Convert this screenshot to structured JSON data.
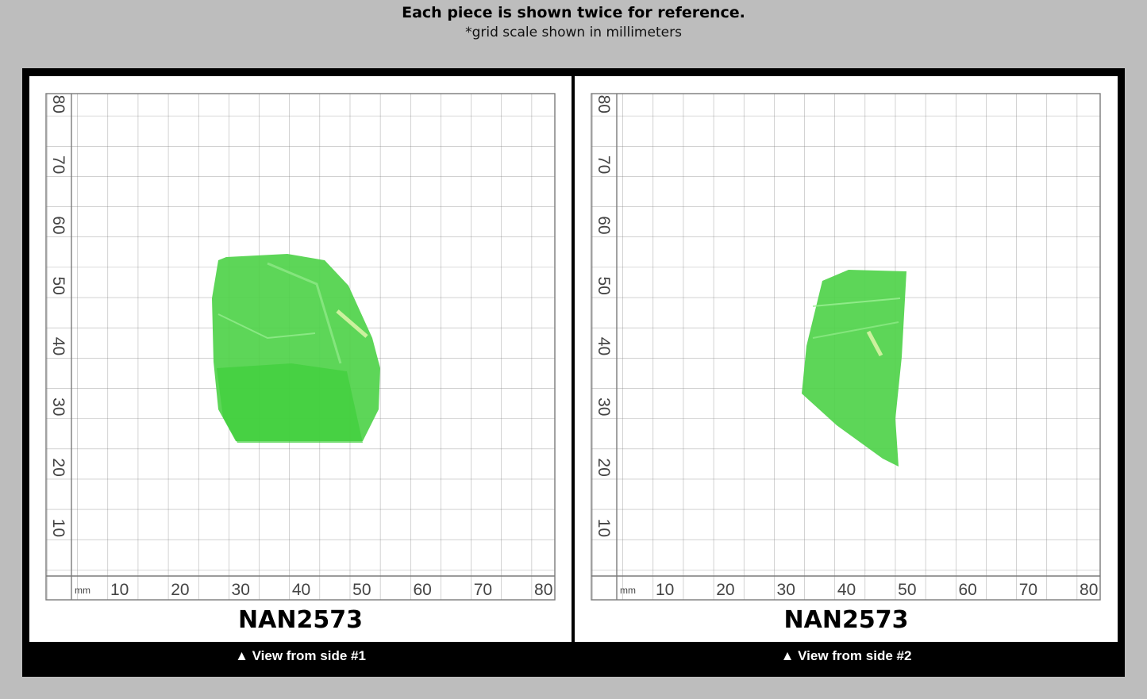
{
  "header": {
    "title": "Each piece is shown twice for reference.",
    "subtitle": "*grid scale shown in millimeters"
  },
  "grid": {
    "unit_label": "mm",
    "x_ticks": [
      "10",
      "20",
      "30",
      "40",
      "50",
      "60",
      "70",
      "80"
    ],
    "y_ticks": [
      "80",
      "70",
      "60",
      "50",
      "40",
      "30",
      "20",
      "10"
    ]
  },
  "views": [
    {
      "code": "NAN2573",
      "caption": "▲ View from side #1"
    },
    {
      "code": "NAN2573",
      "caption": "▲ View from side #2"
    }
  ],
  "colors": {
    "specimen": "#4fd24a",
    "specimen_dark": "#2fb82c",
    "grid_line": "#7a7a7a",
    "frame": "#000000"
  }
}
